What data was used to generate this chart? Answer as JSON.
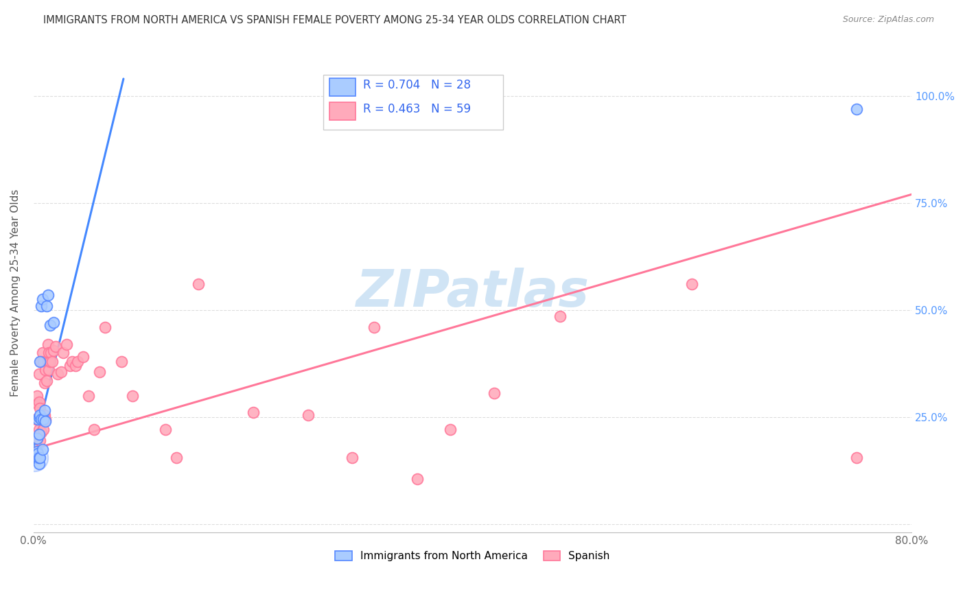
{
  "title": "IMMIGRANTS FROM NORTH AMERICA VS SPANISH FEMALE POVERTY AMONG 25-34 YEAR OLDS CORRELATION CHART",
  "source": "Source: ZipAtlas.com",
  "ylabel": "Female Poverty Among 25-34 Year Olds",
  "xlim": [
    0.0,
    0.8
  ],
  "ylim": [
    -0.02,
    1.1
  ],
  "blue_R": 0.704,
  "blue_N": 28,
  "pink_R": 0.463,
  "pink_N": 59,
  "blue_line_color": "#4488ff",
  "pink_line_color": "#ff7799",
  "blue_marker_face": "#aaccff",
  "blue_marker_edge": "#5588ff",
  "pink_marker_face": "#ffaabb",
  "pink_marker_edge": "#ff7799",
  "legend_text_color": "#3366ee",
  "right_axis_color": "#5599ff",
  "grid_color": "#dddddd",
  "watermark_color": "#d0e4f5",
  "blue_scatter_x": [
    0.001,
    0.002,
    0.002,
    0.003,
    0.003,
    0.003,
    0.004,
    0.004,
    0.004,
    0.005,
    0.005,
    0.005,
    0.005,
    0.006,
    0.006,
    0.006,
    0.007,
    0.007,
    0.008,
    0.008,
    0.009,
    0.01,
    0.011,
    0.012,
    0.013,
    0.015,
    0.018,
    0.75
  ],
  "blue_scatter_y": [
    0.155,
    0.16,
    0.155,
    0.17,
    0.155,
    0.2,
    0.155,
    0.165,
    0.245,
    0.14,
    0.21,
    0.25,
    0.155,
    0.255,
    0.155,
    0.38,
    0.245,
    0.51,
    0.175,
    0.525,
    0.245,
    0.265,
    0.24,
    0.51,
    0.535,
    0.465,
    0.47,
    0.97
  ],
  "pink_scatter_x": [
    0.002,
    0.002,
    0.003,
    0.003,
    0.004,
    0.004,
    0.005,
    0.005,
    0.005,
    0.006,
    0.006,
    0.007,
    0.007,
    0.008,
    0.008,
    0.009,
    0.009,
    0.01,
    0.01,
    0.011,
    0.011,
    0.012,
    0.013,
    0.013,
    0.014,
    0.014,
    0.015,
    0.016,
    0.017,
    0.018,
    0.02,
    0.022,
    0.025,
    0.027,
    0.03,
    0.033,
    0.035,
    0.038,
    0.04,
    0.045,
    0.05,
    0.055,
    0.06,
    0.065,
    0.08,
    0.09,
    0.12,
    0.13,
    0.15,
    0.2,
    0.25,
    0.29,
    0.31,
    0.35,
    0.38,
    0.42,
    0.48,
    0.6,
    0.75
  ],
  "pink_scatter_y": [
    0.155,
    0.245,
    0.17,
    0.3,
    0.2,
    0.28,
    0.22,
    0.285,
    0.35,
    0.195,
    0.27,
    0.215,
    0.38,
    0.245,
    0.4,
    0.22,
    0.38,
    0.255,
    0.33,
    0.245,
    0.36,
    0.335,
    0.38,
    0.42,
    0.36,
    0.4,
    0.38,
    0.4,
    0.38,
    0.405,
    0.415,
    0.35,
    0.355,
    0.4,
    0.42,
    0.37,
    0.38,
    0.37,
    0.38,
    0.39,
    0.3,
    0.22,
    0.355,
    0.46,
    0.38,
    0.3,
    0.22,
    0.155,
    0.56,
    0.26,
    0.255,
    0.155,
    0.46,
    0.105,
    0.22,
    0.305,
    0.485,
    0.56,
    0.155
  ],
  "blue_line_x": [
    0.0,
    0.082
  ],
  "blue_line_y": [
    0.175,
    1.04
  ],
  "pink_line_x": [
    0.0,
    0.8
  ],
  "pink_line_y": [
    0.175,
    0.77
  ]
}
